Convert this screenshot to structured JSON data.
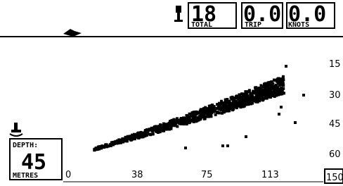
{
  "counters": [
    {
      "value": "18",
      "label": "TOTAL"
    },
    {
      "value": "0.0",
      "label": "TRIP"
    },
    {
      "value": "0.0",
      "label": "KNOTS"
    }
  ],
  "depth_scale": [
    "15",
    "30",
    "45",
    "60"
  ],
  "x_scale": [
    "0",
    "38",
    "75",
    "113",
    "150"
  ],
  "depth_box": {
    "label": "DEPTH:",
    "value": "45",
    "unit": "METRES"
  }
}
